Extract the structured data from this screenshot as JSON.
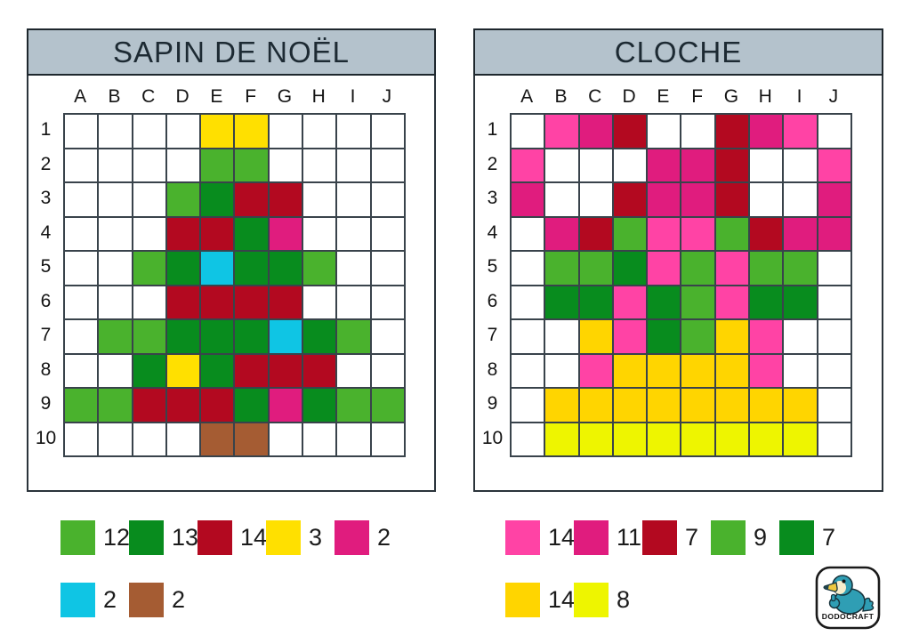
{
  "logo": {
    "text": "DODOCRAFT"
  },
  "chart_data": [
    {
      "type": "heatmap",
      "title": "SAPIN DE NOËL",
      "x_labels": [
        "A",
        "B",
        "C",
        "D",
        "E",
        "F",
        "G",
        "H",
        "I",
        "J"
      ],
      "y_labels": [
        "1",
        "2",
        "3",
        "4",
        "5",
        "6",
        "7",
        "8",
        "9",
        "10"
      ],
      "palette": {
        ".": "#FFFFFF",
        "g": "#4AB22D",
        "G": "#088C1E",
        "r": "#B30920",
        "y": "#FFE000",
        "m": "#E01C7E",
        "c": "#0FC5E4",
        "b": "#A55C33"
      },
      "palette_names": {
        ".": "white",
        "g": "light-green",
        "G": "dark-green",
        "r": "dark-red",
        "y": "yellow",
        "m": "magenta-pink",
        "c": "cyan",
        "b": "brown"
      },
      "grid": [
        "....yy....",
        "....gg....",
        "...gGrr...",
        "...rrGm...",
        "..gGcGGg..",
        "...rrrr...",
        ".ggGGGcGg.",
        "..GyGrrr..",
        "ggrrrGmGgg",
        "....bb...."
      ],
      "legend_rows": [
        [
          {
            "name": "light-green",
            "color": "#4AB22D",
            "count": "12"
          },
          {
            "name": "dark-green",
            "color": "#088C1E",
            "count": "13"
          },
          {
            "name": "dark-red",
            "color": "#B30920",
            "count": "14"
          },
          {
            "name": "yellow",
            "color": "#FFE000",
            "count": "3"
          },
          {
            "name": "magenta-pink",
            "color": "#E01C7E",
            "count": "2"
          }
        ],
        [
          {
            "name": "cyan",
            "color": "#0FC5E4",
            "count": "2"
          },
          {
            "name": "brown",
            "color": "#A55C33",
            "count": "2"
          }
        ]
      ]
    },
    {
      "type": "heatmap",
      "title": "CLOCHE",
      "x_labels": [
        "A",
        "B",
        "C",
        "D",
        "E",
        "F",
        "G",
        "H",
        "I",
        "J"
      ],
      "y_labels": [
        "1",
        "2",
        "3",
        "4",
        "5",
        "6",
        "7",
        "8",
        "9",
        "10"
      ],
      "palette": {
        ".": "#FFFFFF",
        "p": "#FF43A5",
        "M": "#E01C7E",
        "r": "#B30920",
        "g": "#4AB22D",
        "G": "#088C1E",
        "d": "#FFD500",
        "l": "#EEF500"
      },
      "palette_names": {
        ".": "white",
        "p": "hot-pink",
        "M": "magenta-pink",
        "r": "dark-red",
        "g": "light-green",
        "G": "dark-green",
        "d": "gold-yellow",
        "l": "lemon-yellow"
      },
      "grid": [
        ".pMr..rMp.",
        "p...MMr..p",
        "M..rMMr..M",
        ".MrgppgrMM",
        ".ggGpgpgg.",
        ".GGpGgpGG.",
        "..dpGgdp..",
        "..pddddp..",
        ".dddddddd.",
        ".llllllll."
      ],
      "legend_rows": [
        [
          {
            "name": "hot-pink",
            "color": "#FF43A5",
            "count": "14"
          },
          {
            "name": "magenta-pink",
            "color": "#E01C7E",
            "count": "11"
          },
          {
            "name": "dark-red",
            "color": "#B30920",
            "count": "7"
          },
          {
            "name": "light-green",
            "color": "#4AB22D",
            "count": "9"
          },
          {
            "name": "dark-green",
            "color": "#088C1E",
            "count": "7"
          }
        ],
        [
          {
            "name": "gold-yellow",
            "color": "#FFD500",
            "count": "14"
          },
          {
            "name": "lemon-yellow",
            "color": "#EEF500",
            "count": "8"
          }
        ]
      ]
    }
  ]
}
